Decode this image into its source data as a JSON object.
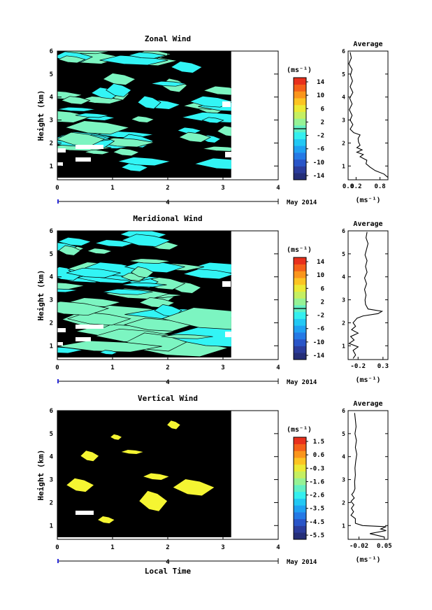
{
  "xlabel": "Local Time",
  "date_label": "May 2014",
  "day_label": "4",
  "colors": {
    "zonal_bg": "#7cf5c1",
    "zonal_patch": "#32f5f5",
    "vertical_bg": "#fdc835",
    "vertical_patch": "#f5f532",
    "colorbar": [
      "#252e78",
      "#2b3c9c",
      "#2a55c8",
      "#2579e5",
      "#1fa1f2",
      "#22c8f4",
      "#34efef",
      "#63f0c4",
      "#96f295",
      "#c5ef61",
      "#ecea35",
      "#fcc422",
      "#fa951c",
      "#f46019",
      "#e8301c"
    ]
  },
  "chart_data": [
    {
      "type": "heatmap",
      "title": "Zonal Wind",
      "xlabel": "",
      "ylabel": "Height (km)",
      "xlim": [
        0,
        4
      ],
      "ylim": [
        0.4,
        6
      ],
      "x_ticks": [
        "0",
        "1",
        "2",
        "3",
        "4"
      ],
      "y_ticks": [
        "1",
        "2",
        "3",
        "4",
        "5",
        "6"
      ],
      "data_x_extent": [
        0,
        3.15
      ],
      "colorbar_unit": "(ms⁻¹)",
      "colorbar_ticks": [
        "14",
        "10",
        "6",
        "2",
        "-2",
        "-6",
        "-10",
        "-14"
      ],
      "profile": {
        "title": "Average",
        "xlabel": "(ms⁻¹)",
        "x_ticks": [
          "0.0",
          "0.2",
          "0.8"
        ],
        "xlim": [
          0.0,
          1.0
        ],
        "ylim": [
          0.4,
          6
        ],
        "y_ticks": [
          "1",
          "2",
          "3",
          "4",
          "5",
          "6"
        ],
        "values": [
          [
            0.05,
            5.95
          ],
          [
            0.08,
            5.7
          ],
          [
            0.02,
            5.45
          ],
          [
            0.1,
            5.2
          ],
          [
            0.06,
            4.95
          ],
          [
            0.11,
            4.7
          ],
          [
            0.05,
            4.45
          ],
          [
            0.12,
            4.2
          ],
          [
            0.04,
            3.95
          ],
          [
            0.1,
            3.7
          ],
          [
            0.03,
            3.45
          ],
          [
            0.1,
            3.2
          ],
          [
            0.05,
            3.0
          ],
          [
            0.12,
            2.8
          ],
          [
            0.05,
            2.6
          ],
          [
            0.14,
            2.45
          ],
          [
            0.3,
            2.35
          ],
          [
            0.25,
            2.2
          ],
          [
            0.26,
            2.05
          ],
          [
            0.3,
            1.9
          ],
          [
            0.22,
            1.8
          ],
          [
            0.35,
            1.7
          ],
          [
            0.22,
            1.6
          ],
          [
            0.38,
            1.5
          ],
          [
            0.3,
            1.4
          ],
          [
            0.47,
            1.25
          ],
          [
            0.45,
            1.1
          ],
          [
            0.55,
            0.95
          ],
          [
            0.68,
            0.8
          ],
          [
            0.9,
            0.65
          ],
          [
            1.0,
            0.5
          ]
        ]
      }
    },
    {
      "type": "heatmap",
      "title": "Meridional Wind",
      "xlabel": "",
      "ylabel": "Height (km)",
      "xlim": [
        0,
        4
      ],
      "ylim": [
        0.4,
        6
      ],
      "x_ticks": [
        "0",
        "1",
        "2",
        "3",
        "4"
      ],
      "y_ticks": [
        "1",
        "2",
        "3",
        "4",
        "5",
        "6"
      ],
      "data_x_extent": [
        0,
        3.15
      ],
      "colorbar_unit": "(ms⁻¹)",
      "colorbar_ticks": [
        "14",
        "10",
        "6",
        "2",
        "-2",
        "-6",
        "-10",
        "-14"
      ],
      "profile": {
        "title": "Average",
        "xlabel": "(ms⁻¹)",
        "x_ticks": [
          "-0.2",
          "0.3"
        ],
        "xlim": [
          -0.4,
          0.4
        ],
        "ylim": [
          0.4,
          6
        ],
        "y_ticks": [
          "1",
          "2",
          "3",
          "4",
          "5",
          "6"
        ],
        "values": [
          [
            -0.02,
            5.95
          ],
          [
            -0.04,
            5.7
          ],
          [
            0.0,
            5.45
          ],
          [
            -0.03,
            5.2
          ],
          [
            -0.06,
            4.95
          ],
          [
            -0.02,
            4.7
          ],
          [
            -0.05,
            4.45
          ],
          [
            -0.02,
            4.2
          ],
          [
            -0.07,
            3.95
          ],
          [
            -0.03,
            3.7
          ],
          [
            -0.07,
            3.45
          ],
          [
            -0.04,
            3.2
          ],
          [
            -0.06,
            3.0
          ],
          [
            -0.05,
            2.8
          ],
          [
            0.0,
            2.6
          ],
          [
            0.28,
            2.5
          ],
          [
            0.2,
            2.4
          ],
          [
            -0.1,
            2.3
          ],
          [
            -0.22,
            2.2
          ],
          [
            -0.3,
            2.0
          ],
          [
            -0.25,
            1.85
          ],
          [
            -0.33,
            1.7
          ],
          [
            -0.2,
            1.55
          ],
          [
            -0.35,
            1.4
          ],
          [
            -0.28,
            1.25
          ],
          [
            -0.38,
            1.1
          ],
          [
            -0.2,
            0.95
          ],
          [
            -0.3,
            0.8
          ],
          [
            -0.25,
            0.6
          ],
          [
            -0.3,
            0.45
          ]
        ]
      }
    },
    {
      "type": "heatmap",
      "title": "Vertical Wind",
      "xlabel": "Local Time",
      "ylabel": "Height (km)",
      "xlim": [
        0,
        4
      ],
      "ylim": [
        0.4,
        6
      ],
      "x_ticks": [
        "0",
        "1",
        "2",
        "3",
        "4"
      ],
      "y_ticks": [
        "1",
        "2",
        "3",
        "4",
        "5",
        "6"
      ],
      "data_x_extent": [
        0,
        3.15
      ],
      "colorbar_unit": "(ms⁻¹)",
      "colorbar_ticks": [
        "1.5",
        "0.6",
        "-0.3",
        "-1.6",
        "-2.6",
        "-3.5",
        "-4.5",
        "-5.5"
      ],
      "profile": {
        "title": "Average",
        "xlabel": "(ms⁻¹)",
        "x_ticks": [
          "-0.02",
          "0.05"
        ],
        "xlim": [
          -0.05,
          0.06
        ],
        "ylim": [
          0.4,
          6
        ],
        "y_ticks": [
          "1",
          "2",
          "3",
          "4",
          "5",
          "6"
        ],
        "values": [
          [
            -0.032,
            5.9
          ],
          [
            -0.03,
            5.6
          ],
          [
            -0.028,
            5.3
          ],
          [
            -0.031,
            5.0
          ],
          [
            -0.027,
            4.7
          ],
          [
            -0.03,
            4.4
          ],
          [
            -0.026,
            4.1
          ],
          [
            -0.029,
            3.8
          ],
          [
            -0.031,
            3.5
          ],
          [
            -0.03,
            3.2
          ],
          [
            -0.032,
            2.9
          ],
          [
            -0.031,
            2.6
          ],
          [
            -0.035,
            2.45
          ],
          [
            -0.04,
            2.35
          ],
          [
            -0.033,
            2.2
          ],
          [
            -0.042,
            2.05
          ],
          [
            -0.034,
            1.9
          ],
          [
            -0.041,
            1.75
          ],
          [
            -0.035,
            1.6
          ],
          [
            -0.042,
            1.45
          ],
          [
            -0.03,
            1.3
          ],
          [
            -0.03,
            1.1
          ],
          [
            -0.01,
            1.0
          ],
          [
            0.055,
            0.95
          ],
          [
            0.04,
            0.85
          ],
          [
            0.055,
            0.78
          ],
          [
            0.01,
            0.65
          ],
          [
            0.05,
            0.5
          ]
        ]
      }
    }
  ]
}
